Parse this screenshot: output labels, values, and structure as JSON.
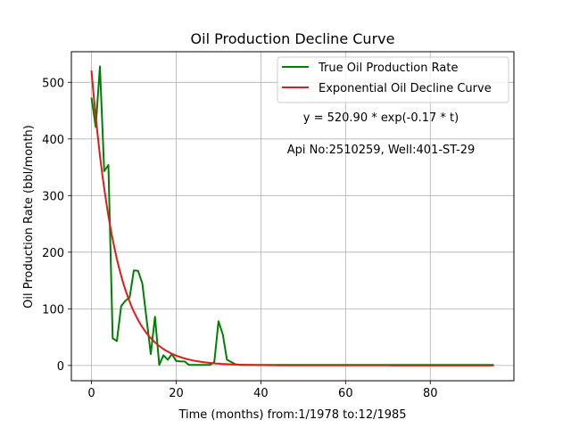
{
  "chart_data": {
    "type": "line",
    "title": "Oil Production Decline Curve",
    "xlabel": "Time (months) from:1/1978 to:12/1985",
    "ylabel": "Oil Production Rate (bbl/month)",
    "xlim": [
      -4.75,
      99.75
    ],
    "ylim": [
      -27,
      554
    ],
    "xticks": [
      0,
      20,
      40,
      60,
      80
    ],
    "yticks": [
      0,
      100,
      200,
      300,
      400,
      500
    ],
    "grid": true,
    "legend_position": "top-right",
    "annotations": [
      {
        "text": "y = 520.90 * exp(-0.17 * t)"
      },
      {
        "text": "Api No:2510259, Well:401-ST-29"
      }
    ],
    "series": [
      {
        "name": "True Oil Production Rate",
        "color": "#008000",
        "x": [
          0,
          1,
          2,
          3,
          4,
          5,
          6,
          7,
          8,
          9,
          10,
          11,
          12,
          13,
          14,
          15,
          16,
          17,
          18,
          19,
          20,
          21,
          22,
          23,
          24,
          25,
          26,
          27,
          28,
          29,
          30,
          31,
          32,
          33,
          34,
          35,
          36,
          40,
          50,
          60,
          70,
          80,
          90,
          95
        ],
        "y": [
          473,
          421,
          528,
          343,
          354,
          48,
          43,
          105,
          114,
          120,
          168,
          167,
          145,
          83,
          20,
          86,
          1,
          18,
          10,
          20,
          8,
          7,
          7,
          1,
          1,
          1,
          1,
          1,
          1,
          6,
          78,
          55,
          10,
          6,
          2,
          1,
          1,
          1,
          1,
          1,
          1,
          1,
          1,
          1
        ]
      },
      {
        "name": "Exponential Oil Decline Curve",
        "color": "#e31a1c",
        "a": 520.9,
        "b": 0.17,
        "x_range": [
          0,
          95
        ]
      }
    ]
  }
}
